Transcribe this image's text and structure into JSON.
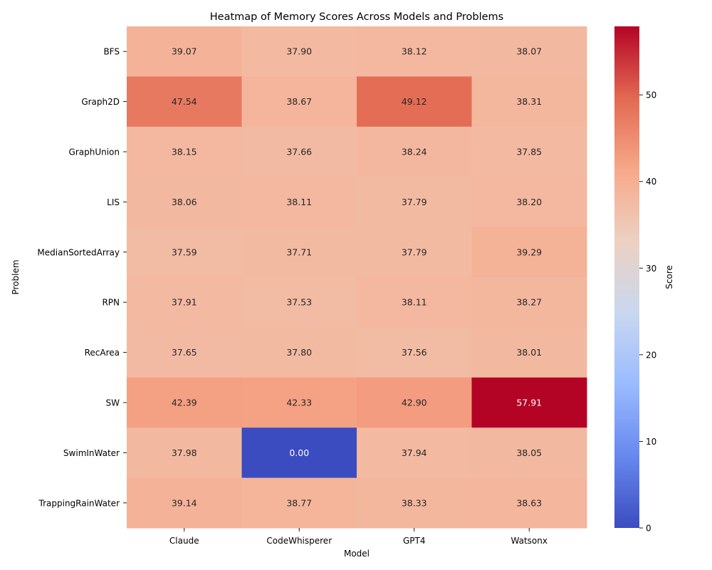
{
  "chart_data": {
    "type": "heatmap",
    "title": "Heatmap of Memory Scores Across Models and Problems",
    "xlabel": "Model",
    "ylabel": "Problem",
    "x_categories": [
      "Claude",
      "CodeWhisperer",
      "GPT4",
      "Watsonx"
    ],
    "y_categories": [
      "BFS",
      "Graph2D",
      "GraphUnion",
      "LIS",
      "MedianSortedArray",
      "RPN",
      "RecArea",
      "SW",
      "SwimInWater",
      "TrappingRainWater"
    ],
    "values": [
      [
        39.07,
        37.9,
        38.12,
        38.07
      ],
      [
        47.54,
        38.67,
        49.12,
        38.31
      ],
      [
        38.15,
        37.66,
        38.24,
        37.85
      ],
      [
        38.06,
        38.11,
        37.79,
        38.2
      ],
      [
        37.59,
        37.71,
        37.79,
        39.29
      ],
      [
        37.91,
        37.53,
        38.11,
        38.27
      ],
      [
        37.65,
        37.8,
        37.56,
        38.01
      ],
      [
        42.39,
        42.33,
        42.9,
        57.91
      ],
      [
        37.98,
        0.0,
        37.94,
        38.05
      ],
      [
        39.14,
        38.77,
        38.33,
        38.63
      ]
    ],
    "value_format_decimals": 2,
    "colormap": "coolwarm",
    "color_range": [
      0,
      57.91
    ],
    "colorbar": {
      "label": "Score",
      "ticks": [
        "0",
        "10",
        "20",
        "30",
        "40",
        "50"
      ],
      "tick_values": [
        0,
        10,
        20,
        30,
        40,
        50
      ]
    },
    "colormap_stops": [
      "#3b4cc0",
      "#6788ee",
      "#9abbff",
      "#c9d7f0",
      "#edd1c2",
      "#f7a889",
      "#e26952",
      "#b40426"
    ]
  }
}
